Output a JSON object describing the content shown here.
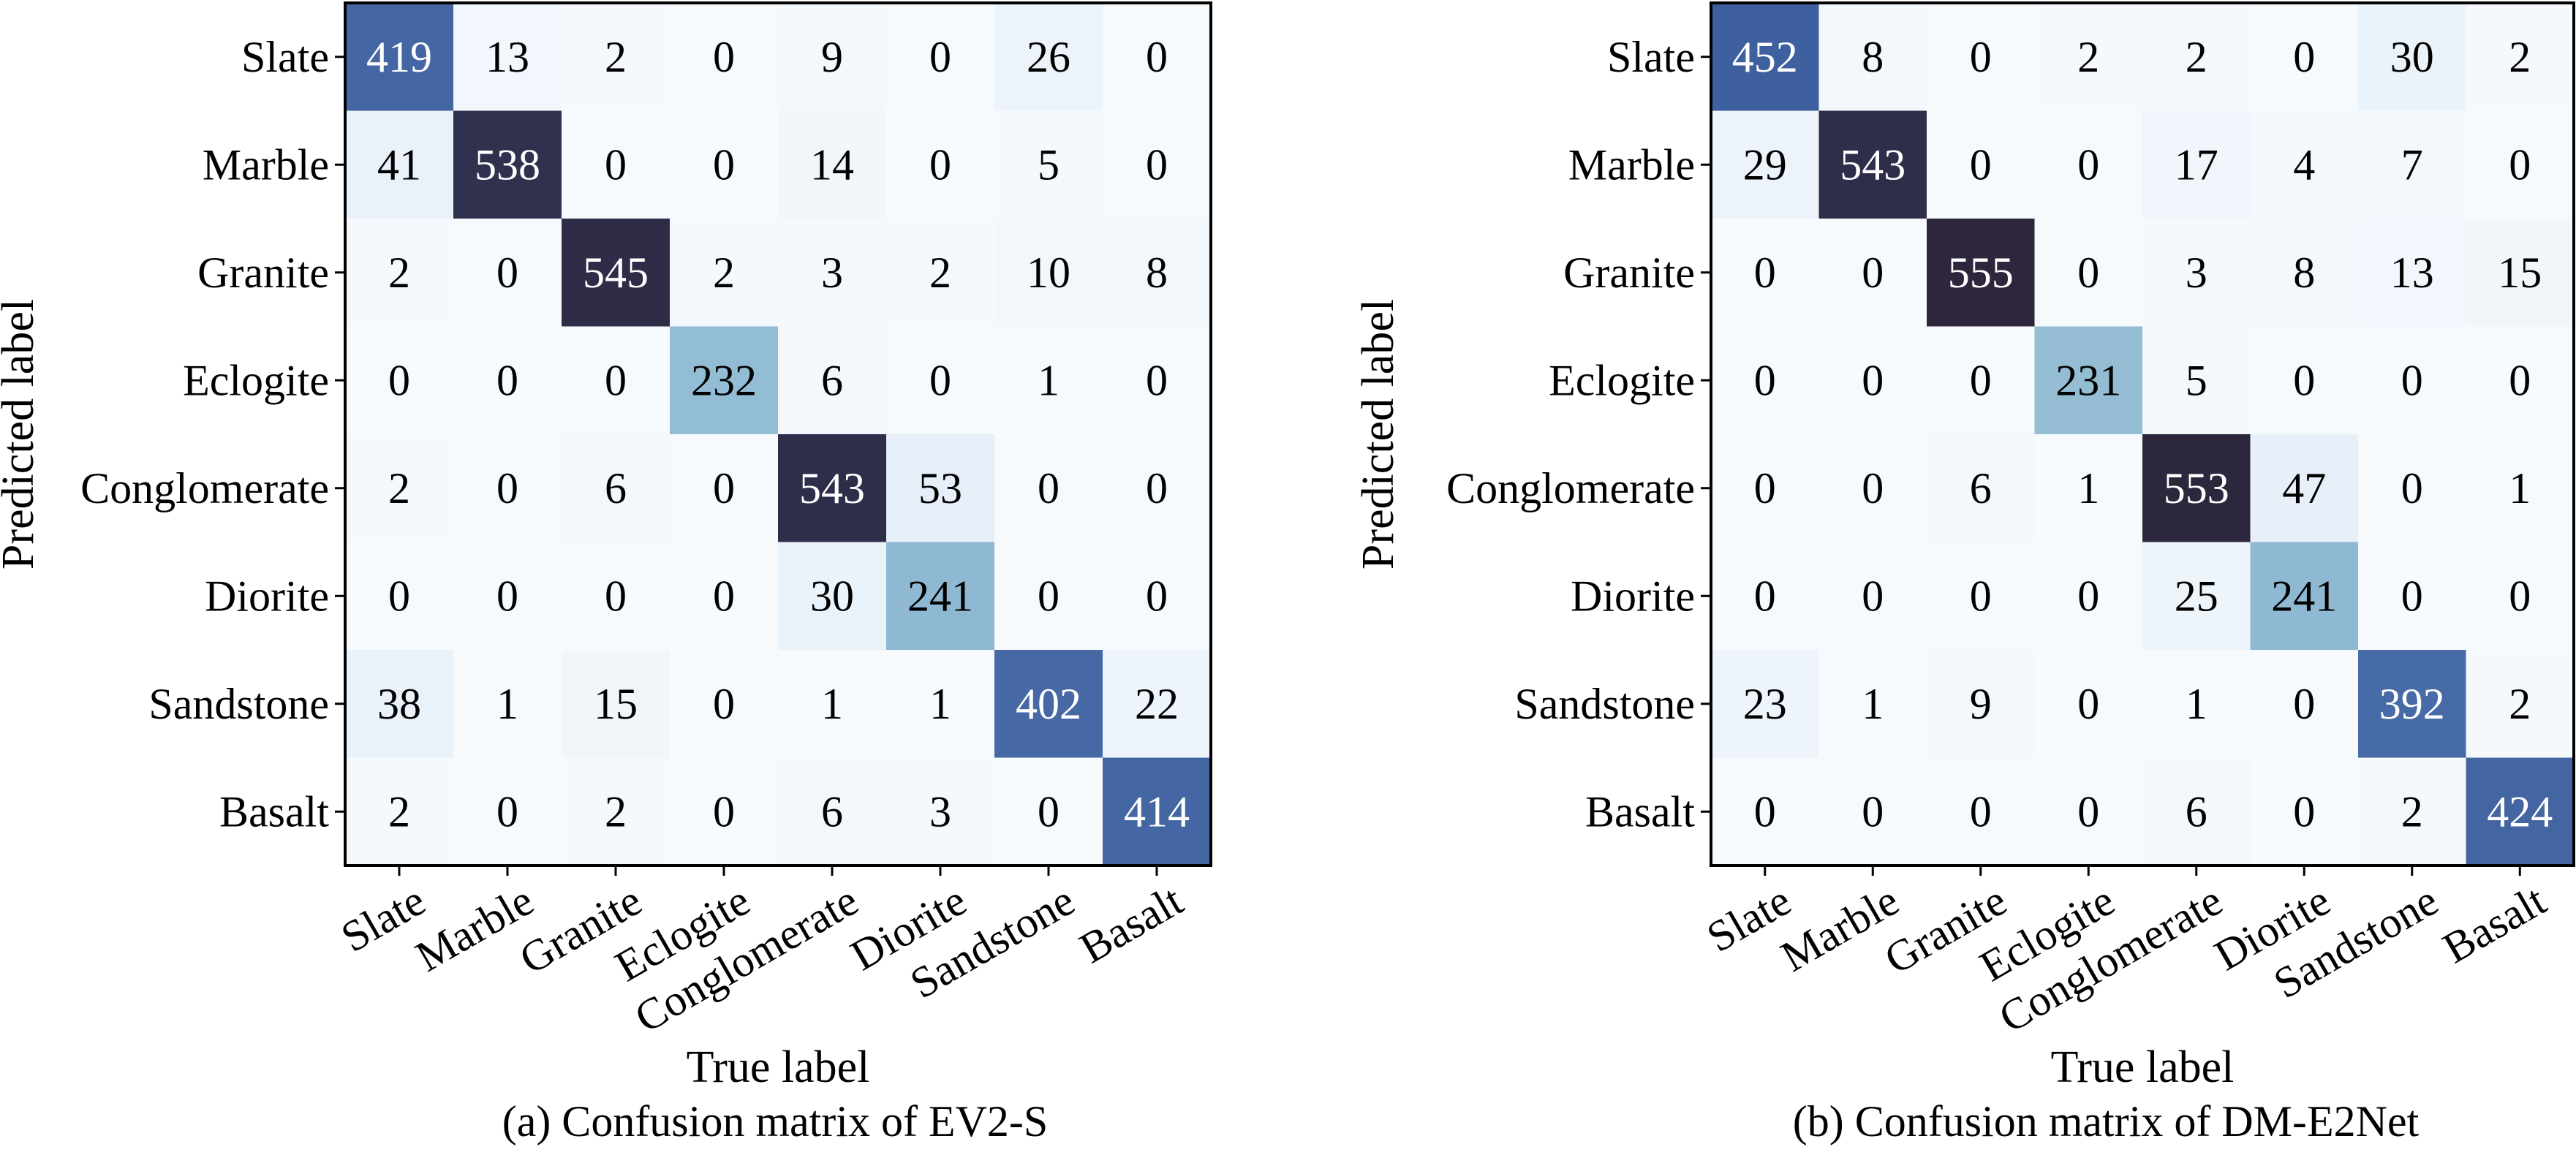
{
  "chart_data": [
    {
      "type": "heatmap",
      "caption": "(a) Confusion matrix of EV2-S",
      "xlabel": "True label",
      "ylabel": "Predicted label",
      "row_labels": [
        "Slate",
        "Marble",
        "Granite",
        "Eclogite",
        "Conglomerate",
        "Diorite",
        "Sandstone",
        "Basalt"
      ],
      "col_labels": [
        "Slate",
        "Marble",
        "Granite",
        "Eclogite",
        "Conglomerate",
        "Diorite",
        "Sandstone",
        "Basalt"
      ],
      "values": [
        [
          419,
          13,
          2,
          0,
          9,
          0,
          26,
          0
        ],
        [
          41,
          538,
          0,
          0,
          14,
          0,
          5,
          0
        ],
        [
          2,
          0,
          545,
          2,
          3,
          2,
          10,
          8
        ],
        [
          0,
          0,
          0,
          232,
          6,
          0,
          1,
          0
        ],
        [
          2,
          0,
          6,
          0,
          543,
          53,
          0,
          0
        ],
        [
          0,
          0,
          0,
          0,
          30,
          241,
          0,
          0
        ],
        [
          38,
          1,
          15,
          0,
          1,
          1,
          402,
          22
        ],
        [
          2,
          0,
          2,
          0,
          6,
          3,
          0,
          414
        ]
      ],
      "colormap": "Blues",
      "vmax": 555
    },
    {
      "type": "heatmap",
      "caption": "(b) Confusion matrix of DM-E2Net",
      "xlabel": "True label",
      "ylabel": "Predicted label",
      "row_labels": [
        "Slate",
        "Marble",
        "Granite",
        "Eclogite",
        "Conglomerate",
        "Diorite",
        "Sandstone",
        "Basalt"
      ],
      "col_labels": [
        "Slate",
        "Marble",
        "Granite",
        "Eclogite",
        "Conglomerate",
        "Diorite",
        "Sandstone",
        "Basalt"
      ],
      "values": [
        [
          452,
          8,
          0,
          2,
          2,
          0,
          30,
          2
        ],
        [
          29,
          543,
          0,
          0,
          17,
          4,
          7,
          0
        ],
        [
          0,
          0,
          555,
          0,
          3,
          8,
          13,
          15
        ],
        [
          0,
          0,
          0,
          231,
          5,
          0,
          0,
          0
        ],
        [
          0,
          0,
          6,
          1,
          553,
          47,
          0,
          1
        ],
        [
          0,
          0,
          0,
          0,
          25,
          241,
          0,
          0
        ],
        [
          23,
          1,
          9,
          0,
          1,
          0,
          392,
          2
        ],
        [
          0,
          0,
          0,
          0,
          6,
          0,
          2,
          424
        ]
      ],
      "colormap": "Blues",
      "vmax": 555
    }
  ]
}
